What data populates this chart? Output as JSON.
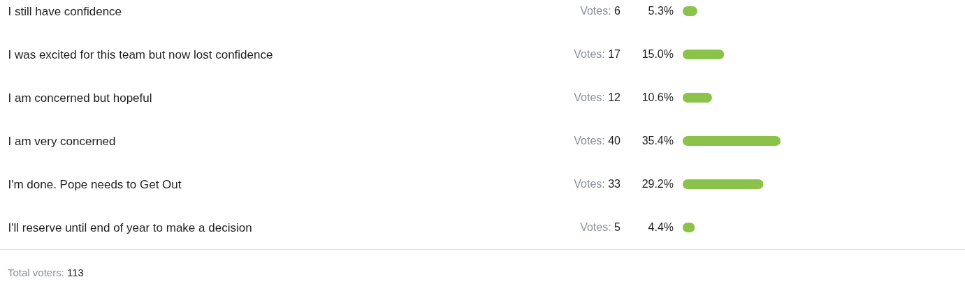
{
  "chart_data": {
    "type": "bar",
    "orientation": "horizontal",
    "categories": [
      "I still have confidence",
      "I was excited for this team but now lost confidence",
      "I am concerned but hopeful",
      "I am very concerned",
      "I'm done. Pope needs to Get Out",
      "I'll reserve until end of year to make a decision"
    ],
    "values": [
      5.3,
      15.0,
      10.6,
      35.4,
      29.2,
      4.4
    ],
    "value_labels": [
      "5.3%",
      "15.0%",
      "10.6%",
      "35.4%",
      "29.2%",
      "4.4%"
    ],
    "color": "#8bc34a",
    "tick_labels": "y",
    "annotations": [
      "Votes: 6",
      "Votes: 17",
      "Votes: 12",
      "Votes: 40",
      "Votes: 33",
      "Votes: 5",
      "Total voters: 113"
    ]
  }
}
